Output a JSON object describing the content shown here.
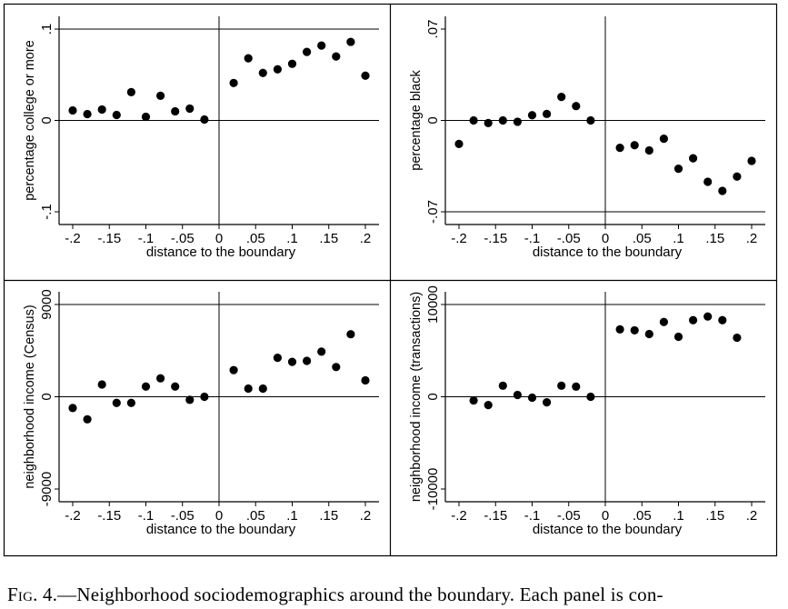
{
  "caption": {
    "label": "Fig. 4.",
    "text": "—Neighborhood sociodemographics around the boundary. Each panel is con-"
  },
  "chart_data": [
    {
      "type": "scatter",
      "xlabel": "distance to the boundary",
      "ylabel": "percentage college or more",
      "xlim": [
        -0.2,
        0.2
      ],
      "ylim": [
        -0.1,
        0.1
      ],
      "xticks": [
        "-.2",
        "-.15",
        "-.1",
        "-.05",
        "0",
        ".05",
        ".1",
        ".15",
        ".2"
      ],
      "yticks": [
        {
          "v": -0.1,
          "label": "-.1"
        },
        {
          "v": 0,
          "label": "0"
        },
        {
          "v": 0.1,
          "label": ".1"
        }
      ],
      "hlines": [
        0,
        0.1
      ],
      "vline": 0,
      "points": [
        [
          -0.2,
          0.011
        ],
        [
          -0.18,
          0.007
        ],
        [
          -0.16,
          0.012
        ],
        [
          -0.14,
          0.006
        ],
        [
          -0.12,
          0.031
        ],
        [
          -0.1,
          0.004
        ],
        [
          -0.08,
          0.027
        ],
        [
          -0.06,
          0.01
        ],
        [
          -0.04,
          0.013
        ],
        [
          -0.02,
          0.001
        ],
        [
          0.02,
          0.041
        ],
        [
          0.04,
          0.068
        ],
        [
          0.06,
          0.052
        ],
        [
          0.08,
          0.056
        ],
        [
          0.1,
          0.062
        ],
        [
          0.12,
          0.075
        ],
        [
          0.14,
          0.082
        ],
        [
          0.16,
          0.07
        ],
        [
          0.18,
          0.086
        ],
        [
          0.2,
          0.049
        ]
      ]
    },
    {
      "type": "scatter",
      "xlabel": "distance to the boundary",
      "ylabel": "percentage black",
      "xlim": [
        -0.2,
        0.2
      ],
      "ylim": [
        -0.07,
        0.07
      ],
      "xticks": [
        "-.2",
        "-.15",
        "-.1",
        "-.05",
        "0",
        ".05",
        ".1",
        ".15",
        ".2"
      ],
      "yticks": [
        {
          "v": -0.07,
          "label": "-.07"
        },
        {
          "v": 0,
          "label": "0"
        },
        {
          "v": 0.07,
          "label": ".07"
        }
      ],
      "hlines": [
        0,
        -0.07
      ],
      "vline": 0,
      "points": [
        [
          -0.2,
          -0.018
        ],
        [
          -0.18,
          0.0
        ],
        [
          -0.16,
          -0.002
        ],
        [
          -0.14,
          0.0
        ],
        [
          -0.12,
          -0.001
        ],
        [
          -0.1,
          0.004
        ],
        [
          -0.08,
          0.005
        ],
        [
          -0.06,
          0.018
        ],
        [
          -0.04,
          0.011
        ],
        [
          -0.02,
          0.0
        ],
        [
          0.02,
          -0.021
        ],
        [
          0.04,
          -0.019
        ],
        [
          0.06,
          -0.023
        ],
        [
          0.08,
          -0.014
        ],
        [
          0.1,
          -0.037
        ],
        [
          0.12,
          -0.029
        ],
        [
          0.14,
          -0.047
        ],
        [
          0.16,
          -0.054
        ],
        [
          0.18,
          -0.043
        ],
        [
          0.2,
          -0.031
        ]
      ]
    },
    {
      "type": "scatter",
      "xlabel": "distance to the boundary",
      "ylabel": "neighborhood income (Census)",
      "xlim": [
        -0.2,
        0.2
      ],
      "ylim": [
        -9000,
        9000
      ],
      "xticks": [
        "-.2",
        "-.15",
        "-.1",
        "-.05",
        "0",
        ".05",
        ".1",
        ".15",
        ".2"
      ],
      "yticks": [
        {
          "v": -9000,
          "label": "-9000"
        },
        {
          "v": 0,
          "label": "0"
        },
        {
          "v": 9000,
          "label": "9000"
        }
      ],
      "hlines": [
        0,
        9000
      ],
      "vline": 0,
      "points": [
        [
          -0.2,
          -1100
        ],
        [
          -0.18,
          -2200
        ],
        [
          -0.16,
          1200
        ],
        [
          -0.14,
          -600
        ],
        [
          -0.12,
          -600
        ],
        [
          -0.1,
          1000
        ],
        [
          -0.08,
          1800
        ],
        [
          -0.06,
          1000
        ],
        [
          -0.04,
          -300
        ],
        [
          -0.02,
          0
        ],
        [
          0.02,
          2600
        ],
        [
          0.04,
          800
        ],
        [
          0.06,
          800
        ],
        [
          0.08,
          3800
        ],
        [
          0.1,
          3400
        ],
        [
          0.12,
          3500
        ],
        [
          0.14,
          4400
        ],
        [
          0.16,
          2900
        ],
        [
          0.18,
          6100
        ],
        [
          0.2,
          1600
        ]
      ]
    },
    {
      "type": "scatter",
      "xlabel": "distance to the boundary",
      "ylabel": "neighborhood income (transactions)",
      "xlim": [
        -0.2,
        0.2
      ],
      "ylim": [
        -10000,
        10000
      ],
      "xticks": [
        "-.2",
        "-.15",
        "-.1",
        "-.05",
        "0",
        ".05",
        ".1",
        ".15",
        ".2"
      ],
      "yticks": [
        {
          "v": -10000,
          "label": "-10000"
        },
        {
          "v": 0,
          "label": "0"
        },
        {
          "v": 10000,
          "label": "10000"
        }
      ],
      "hlines": [
        0,
        10000
      ],
      "vline": 0,
      "points": [
        [
          -0.18,
          -400
        ],
        [
          -0.16,
          -900
        ],
        [
          -0.14,
          1200
        ],
        [
          -0.12,
          200
        ],
        [
          -0.1,
          -100
        ],
        [
          -0.08,
          -600
        ],
        [
          -0.06,
          1200
        ],
        [
          -0.04,
          1100
        ],
        [
          -0.02,
          0
        ],
        [
          0.02,
          7300
        ],
        [
          0.04,
          7200
        ],
        [
          0.06,
          6800
        ],
        [
          0.08,
          8100
        ],
        [
          0.1,
          6500
        ],
        [
          0.12,
          8300
        ],
        [
          0.14,
          8700
        ],
        [
          0.16,
          8300
        ],
        [
          0.18,
          6400
        ]
      ]
    }
  ]
}
